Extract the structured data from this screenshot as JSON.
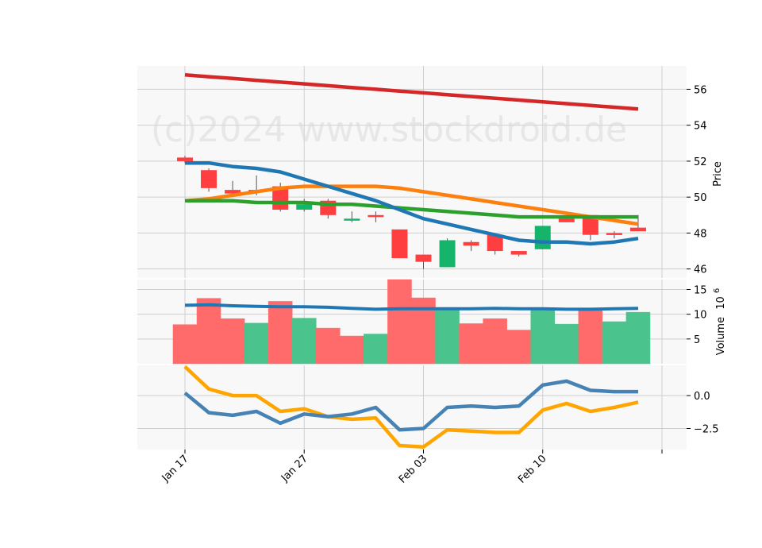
{
  "watermark": "(c)2024 www.stockdroid.de",
  "chart_data": [
    {
      "type": "candlestick",
      "panel": "price",
      "ylabel": "Price",
      "ylim": [
        45.5,
        57.3
      ],
      "yticks": [
        46,
        48,
        50,
        52,
        54,
        56
      ],
      "x_ticks": [
        {
          "label": "Jan 17",
          "index": 0
        },
        {
          "label": "Jan 27",
          "index": 5
        },
        {
          "label": "Feb 03",
          "index": 10
        },
        {
          "label": "Feb 10",
          "index": 15
        }
      ],
      "colors": {
        "up": "#16b36a",
        "down": "#ff3f3f"
      },
      "candles": [
        {
          "open": 52.2,
          "high": 52.3,
          "low": 51.9,
          "close": 52.0
        },
        {
          "open": 51.5,
          "high": 51.6,
          "low": 50.3,
          "close": 50.5
        },
        {
          "open": 50.4,
          "high": 50.9,
          "low": 50.0,
          "close": 50.2
        },
        {
          "open": 50.4,
          "high": 51.2,
          "low": 50.1,
          "close": 50.3
        },
        {
          "open": 50.6,
          "high": 50.8,
          "low": 49.2,
          "close": 49.3
        },
        {
          "open": 49.3,
          "high": 49.9,
          "low": 49.2,
          "close": 49.6
        },
        {
          "open": 49.8,
          "high": 49.9,
          "low": 48.8,
          "close": 49.0
        },
        {
          "open": 48.7,
          "high": 49.2,
          "low": 48.6,
          "close": 48.8
        },
        {
          "open": 49.0,
          "high": 49.2,
          "low": 48.6,
          "close": 48.9
        },
        {
          "open": 48.2,
          "high": 48.2,
          "low": 46.6,
          "close": 46.6
        },
        {
          "open": 46.8,
          "high": 46.8,
          "low": 46.0,
          "close": 46.4
        },
        {
          "open": 46.1,
          "high": 47.7,
          "low": 46.1,
          "close": 47.6
        },
        {
          "open": 47.5,
          "high": 47.6,
          "low": 47.0,
          "close": 47.3
        },
        {
          "open": 47.9,
          "high": 47.9,
          "low": 46.8,
          "close": 47.0
        },
        {
          "open": 47.0,
          "high": 47.0,
          "low": 46.7,
          "close": 46.8
        },
        {
          "open": 47.1,
          "high": 48.4,
          "low": 47.1,
          "close": 48.4
        },
        {
          "open": 48.8,
          "high": 48.9,
          "low": 48.6,
          "close": 48.6
        },
        {
          "open": 49.0,
          "high": 49.0,
          "low": 47.6,
          "close": 47.9
        },
        {
          "open": 48.0,
          "high": 48.1,
          "low": 47.7,
          "close": 47.9
        },
        {
          "open": 48.3,
          "high": 49.0,
          "low": 48.1,
          "close": 48.1
        }
      ],
      "lines": [
        {
          "color": "#d62728",
          "values": [
            56.8,
            56.7,
            56.6,
            56.5,
            56.4,
            56.3,
            56.2,
            56.1,
            56.0,
            55.9,
            55.8,
            55.7,
            55.6,
            55.5,
            55.4,
            55.3,
            55.2,
            55.1,
            55.0,
            54.9
          ]
        },
        {
          "color": "#ff7f0e",
          "values": [
            49.8,
            49.9,
            50.1,
            50.3,
            50.5,
            50.6,
            50.6,
            50.6,
            50.6,
            50.5,
            50.3,
            50.1,
            49.9,
            49.7,
            49.5,
            49.3,
            49.1,
            48.9,
            48.7,
            48.5
          ]
        },
        {
          "color": "#2ca02c",
          "values": [
            49.8,
            49.8,
            49.8,
            49.7,
            49.7,
            49.7,
            49.6,
            49.6,
            49.5,
            49.4,
            49.3,
            49.2,
            49.1,
            49.0,
            48.9,
            48.9,
            48.9,
            48.9,
            48.9,
            48.9
          ]
        },
        {
          "color": "#1f77b4",
          "values": [
            51.9,
            51.9,
            51.7,
            51.6,
            51.4,
            51.0,
            50.6,
            50.2,
            49.8,
            49.3,
            48.8,
            48.5,
            48.2,
            47.9,
            47.6,
            47.5,
            47.5,
            47.4,
            47.5,
            47.7
          ]
        }
      ]
    },
    {
      "type": "bar",
      "panel": "volume",
      "ylabel": "Volume",
      "ylabel_multiplier": "10",
      "ylabel_exponent": "6",
      "ylim": [
        0,
        17
      ],
      "yticks": [
        5,
        10,
        15
      ],
      "colors": {
        "up": "#4ac48c",
        "down": "#ff6b6b"
      },
      "values": [
        7.9,
        13.2,
        9.1,
        8.2,
        12.6,
        9.2,
        7.2,
        5.6,
        6.0,
        17.0,
        13.3,
        10.8,
        8.1,
        9.1,
        6.8,
        10.8,
        8.0,
        10.8,
        8.5,
        10.4
      ],
      "directions": [
        "down",
        "down",
        "down",
        "up",
        "down",
        "up",
        "down",
        "down",
        "up",
        "down",
        "down",
        "up",
        "down",
        "down",
        "down",
        "up",
        "up",
        "down",
        "up",
        "up"
      ],
      "line": {
        "color": "#1f77b4",
        "values": [
          11.8,
          11.9,
          11.7,
          11.6,
          11.5,
          11.5,
          11.4,
          11.2,
          11.0,
          11.1,
          11.1,
          11.1,
          11.1,
          11.2,
          11.1,
          11.1,
          11.0,
          11.0,
          11.1,
          11.2
        ]
      }
    },
    {
      "type": "line",
      "panel": "indicator",
      "ylim": [
        -4.1,
        2.3
      ],
      "yticks": [
        -2.5,
        0.0
      ],
      "ytick_labels": [
        "−2.5",
        "0.0"
      ],
      "series": [
        {
          "color": "#ffa500",
          "values": [
            2.2,
            0.5,
            0.0,
            0.0,
            -1.2,
            -1.0,
            -1.6,
            -1.8,
            -1.7,
            -3.8,
            -3.9,
            -2.6,
            -2.7,
            -2.8,
            -2.8,
            -1.1,
            -0.6,
            -1.2,
            -0.9,
            -0.5
          ]
        },
        {
          "color": "#4682b4",
          "values": [
            0.2,
            -1.3,
            -1.5,
            -1.2,
            -2.1,
            -1.4,
            -1.6,
            -1.4,
            -0.9,
            -2.6,
            -2.5,
            -0.9,
            -0.8,
            -0.9,
            -0.8,
            0.8,
            1.1,
            0.4,
            0.3,
            0.3
          ]
        }
      ]
    }
  ]
}
